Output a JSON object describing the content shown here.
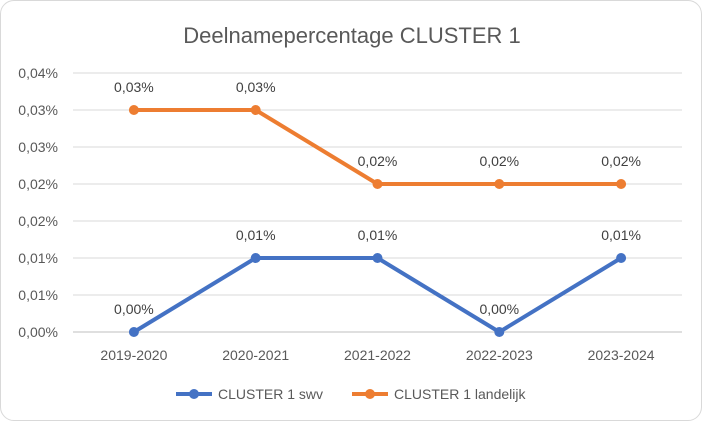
{
  "chart_data": {
    "type": "line",
    "title": "Deelnamepercentage CLUSTER 1",
    "categories": [
      "2019-2020",
      "2020-2021",
      "2021-2022",
      "2022-2023",
      "2023-2024"
    ],
    "y_ticks": [
      "0,00%",
      "0,01%",
      "0,01%",
      "0,02%",
      "0,02%",
      "0,03%",
      "0,03%",
      "0,04%"
    ],
    "ylim": [
      0,
      0.035
    ],
    "grid": true,
    "legend": "bottom",
    "series": [
      {
        "name": "CLUSTER 1 swv",
        "color": "#4472c4",
        "values": [
          0.0,
          0.01,
          0.01,
          0.0,
          0.01
        ],
        "labels": [
          "0,00%",
          "0,01%",
          "0,01%",
          "0,00%",
          "0,01%"
        ]
      },
      {
        "name": "CLUSTER 1 landelijk",
        "color": "#ed7d31",
        "values": [
          0.03,
          0.03,
          0.02,
          0.02,
          0.02
        ],
        "labels": [
          "0,03%",
          "0,03%",
          "0,02%",
          "0,02%",
          "0,02%"
        ]
      }
    ]
  }
}
